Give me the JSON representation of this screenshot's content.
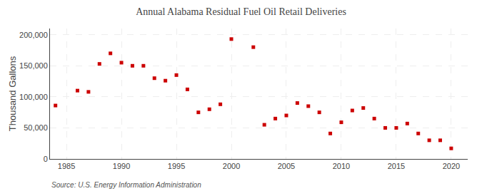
{
  "chart_data": {
    "type": "scatter",
    "title": "Annual Alabama Residual Fuel Oil Retail Deliveries",
    "ylabel": "Thousand Gallons",
    "source": "Source: U.S. Energy Information Administration",
    "x": [
      1984,
      1986,
      1987,
      1988,
      1989,
      1990,
      1991,
      1992,
      1993,
      1994,
      1995,
      1996,
      1997,
      1998,
      1999,
      2000,
      2002,
      2003,
      2004,
      2005,
      2006,
      2007,
      2008,
      2009,
      2010,
      2011,
      2012,
      2013,
      2014,
      2015,
      2016,
      2017,
      2018,
      2019,
      2020
    ],
    "values": [
      86000,
      110000,
      108000,
      153000,
      170000,
      155000,
      150000,
      150000,
      130000,
      126000,
      135000,
      112000,
      75000,
      80000,
      88000,
      193000,
      180000,
      55000,
      65000,
      70000,
      90000,
      85000,
      75000,
      41000,
      59000,
      78000,
      82000,
      65000,
      50000,
      50000,
      57000,
      41000,
      30000,
      30000,
      17000
    ],
    "color": "#cc0000",
    "marker": "square",
    "xlim": [
      1983.5,
      2021.5
    ],
    "ylim": [
      0,
      210000
    ],
    "xticks": [
      1985,
      1990,
      1995,
      2000,
      2005,
      2010,
      2015,
      2020
    ],
    "yticks": [
      0,
      {
        "value": 50000,
        "label": "50,000"
      },
      {
        "value": 100000,
        "label": "100,000"
      },
      {
        "value": 150000,
        "label": "150,000"
      },
      {
        "value": 200000,
        "label": "200,000"
      }
    ],
    "grid": true
  }
}
